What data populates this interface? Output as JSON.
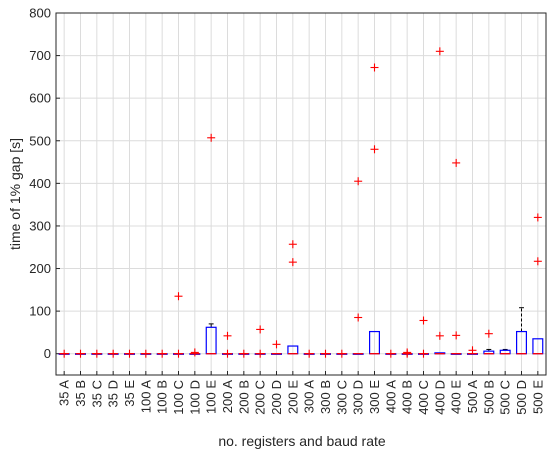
{
  "chart_data": {
    "type": "box",
    "title": "",
    "xlabel": "no. registers and baud rate",
    "ylabel": "time of 1% gap [s]",
    "ylim": [
      -50,
      800
    ],
    "yticks": [
      0,
      100,
      200,
      300,
      400,
      500,
      600,
      700,
      800
    ],
    "grid": true,
    "colors": {
      "box": "#0000ff",
      "median": "#ff0000",
      "outlier": "#ff0000",
      "whisker": "#000000",
      "grid": "#dcdcdc",
      "axis": "#262626"
    },
    "categories": [
      "35 A",
      "35 B",
      "35 C",
      "35 D",
      "35 E",
      "100 A",
      "100 B",
      "100 C",
      "100 D",
      "100 E",
      "200 A",
      "200 B",
      "200 C",
      "200 D",
      "200 E",
      "300 A",
      "300 B",
      "300 C",
      "300 D",
      "300 E",
      "400 A",
      "400 B",
      "400 C",
      "400 D",
      "400 E",
      "500 A",
      "500 B",
      "500 C",
      "500 D",
      "500 E"
    ],
    "boxes": [
      {
        "q1": 0,
        "median": 0,
        "q3": 0,
        "whisker_low": 0,
        "whisker_high": 0,
        "outliers": [
          0
        ]
      },
      {
        "q1": 0,
        "median": 0,
        "q3": 0,
        "whisker_low": 0,
        "whisker_high": 0,
        "outliers": [
          0
        ]
      },
      {
        "q1": 0,
        "median": 0,
        "q3": 0,
        "whisker_low": 0,
        "whisker_high": 0,
        "outliers": [
          0
        ]
      },
      {
        "q1": 0,
        "median": 0,
        "q3": 0,
        "whisker_low": 0,
        "whisker_high": 0,
        "outliers": [
          0
        ]
      },
      {
        "q1": 0,
        "median": 0,
        "q3": 0,
        "whisker_low": 0,
        "whisker_high": 0,
        "outliers": [
          0
        ]
      },
      {
        "q1": 0,
        "median": 0,
        "q3": 0,
        "whisker_low": 0,
        "whisker_high": 0,
        "outliers": [
          0
        ]
      },
      {
        "q1": 0,
        "median": 0,
        "q3": 0,
        "whisker_low": 0,
        "whisker_high": 0,
        "outliers": [
          0
        ]
      },
      {
        "q1": 0,
        "median": 0,
        "q3": 0,
        "whisker_low": 0,
        "whisker_high": 0,
        "outliers": [
          0,
          135
        ]
      },
      {
        "q1": 0,
        "median": 0,
        "q3": 0,
        "whisker_low": 0,
        "whisker_high": 0,
        "outliers": [
          3
        ]
      },
      {
        "q1": 0,
        "median": 0,
        "q3": 62,
        "whisker_low": 0,
        "whisker_high": 70,
        "outliers": [
          507
        ]
      },
      {
        "q1": 0,
        "median": 0,
        "q3": 0,
        "whisker_low": 0,
        "whisker_high": 0,
        "outliers": [
          0,
          42
        ]
      },
      {
        "q1": 0,
        "median": 0,
        "q3": 0,
        "whisker_low": 0,
        "whisker_high": 0,
        "outliers": [
          0
        ]
      },
      {
        "q1": 0,
        "median": 0,
        "q3": 0,
        "whisker_low": 0,
        "whisker_high": 0,
        "outliers": [
          0,
          57
        ]
      },
      {
        "q1": 0,
        "median": 0,
        "q3": 0,
        "whisker_low": 0,
        "whisker_high": 0,
        "outliers": [
          22
        ]
      },
      {
        "q1": 0,
        "median": 0,
        "q3": 18,
        "whisker_low": 0,
        "whisker_high": 18,
        "outliers": [
          215,
          257
        ]
      },
      {
        "q1": 0,
        "median": 0,
        "q3": 0,
        "whisker_low": 0,
        "whisker_high": 0,
        "outliers": [
          0
        ]
      },
      {
        "q1": 0,
        "median": 0,
        "q3": 0,
        "whisker_low": 0,
        "whisker_high": 0,
        "outliers": [
          0
        ]
      },
      {
        "q1": 0,
        "median": 0,
        "q3": 0,
        "whisker_low": 0,
        "whisker_high": 0,
        "outliers": [
          0
        ]
      },
      {
        "q1": 0,
        "median": 0,
        "q3": 0,
        "whisker_low": 0,
        "whisker_high": 0,
        "outliers": [
          85,
          405
        ]
      },
      {
        "q1": 0,
        "median": 0,
        "q3": 52,
        "whisker_low": 0,
        "whisker_high": 52,
        "outliers": [
          480,
          672
        ]
      },
      {
        "q1": 0,
        "median": 0,
        "q3": 0,
        "whisker_low": 0,
        "whisker_high": 0,
        "outliers": [
          0
        ]
      },
      {
        "q1": 0,
        "median": 0,
        "q3": 0,
        "whisker_low": 0,
        "whisker_high": 0,
        "outliers": [
          0,
          3
        ]
      },
      {
        "q1": 0,
        "median": 0,
        "q3": 0,
        "whisker_low": 0,
        "whisker_high": 0,
        "outliers": [
          0,
          78
        ]
      },
      {
        "q1": 0,
        "median": 0,
        "q3": 2,
        "whisker_low": 0,
        "whisker_high": 2,
        "outliers": [
          42,
          710
        ]
      },
      {
        "q1": 0,
        "median": 0,
        "q3": 0,
        "whisker_low": 0,
        "whisker_high": 0,
        "outliers": [
          43,
          448
        ]
      },
      {
        "q1": 0,
        "median": 0,
        "q3": 0,
        "whisker_low": 0,
        "whisker_high": 0,
        "outliers": [
          8
        ]
      },
      {
        "q1": 0,
        "median": 0,
        "q3": 6,
        "whisker_low": 0,
        "whisker_high": 10,
        "outliers": [
          47
        ]
      },
      {
        "q1": 0,
        "median": 0,
        "q3": 8,
        "whisker_low": 0,
        "whisker_high": 10,
        "outliers": []
      },
      {
        "q1": 0,
        "median": 0,
        "q3": 52,
        "whisker_low": 0,
        "whisker_high": 108,
        "outliers": []
      },
      {
        "q1": 0,
        "median": 0,
        "q3": 35,
        "whisker_low": 0,
        "whisker_high": 35,
        "outliers": [
          217,
          320
        ]
      }
    ]
  }
}
